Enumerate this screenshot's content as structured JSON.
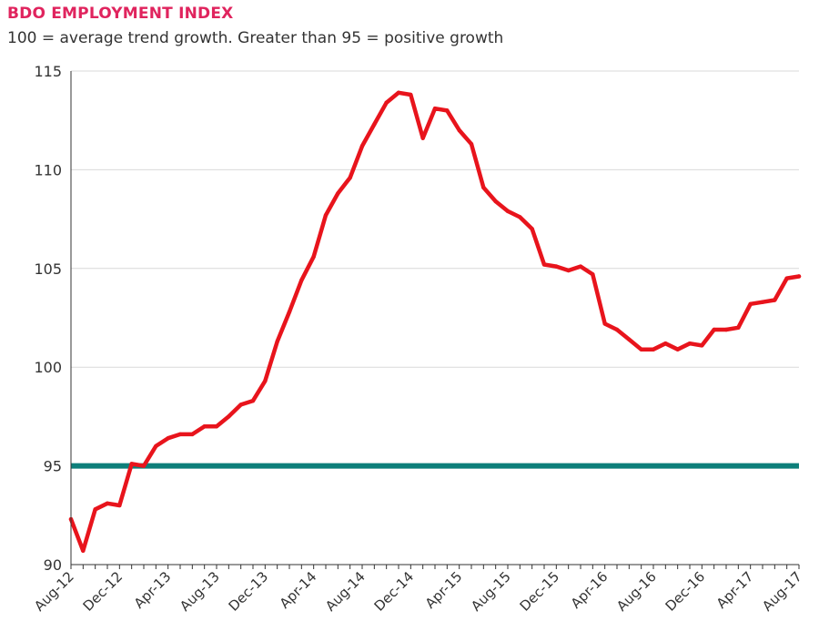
{
  "title": "BDO EMPLOYMENT INDEX",
  "subtitle": "100 = average trend growth. Greater than 95 = positive growth",
  "colors": {
    "title": "#e0245e",
    "series": "#e8141c",
    "threshold": "#0d7f7a",
    "grid": "#d9d9d9",
    "axis": "#333333"
  },
  "chart_data": {
    "type": "line",
    "title": "BDO EMPLOYMENT INDEX",
    "subtitle": "100 = average trend growth. Greater than 95 = positive growth",
    "xlabel": "",
    "ylabel": "",
    "ylim": [
      90,
      115
    ],
    "yticks": [
      90,
      95,
      100,
      105,
      110,
      115
    ],
    "grid": true,
    "legend": "none",
    "x_tick_labels": [
      "Aug-12",
      "Dec-12",
      "Apr-13",
      "Aug-13",
      "Dec-13",
      "Apr-14",
      "Aug-14",
      "Dec-14",
      "Apr-15",
      "Aug-15",
      "Dec-15",
      "Apr-16",
      "Aug-16",
      "Dec-16",
      "Apr-17",
      "Aug-17"
    ],
    "x": [
      "Aug-12",
      "Sep-12",
      "Oct-12",
      "Nov-12",
      "Dec-12",
      "Jan-13",
      "Feb-13",
      "Mar-13",
      "Apr-13",
      "May-13",
      "Jun-13",
      "Jul-13",
      "Aug-13",
      "Sep-13",
      "Oct-13",
      "Nov-13",
      "Dec-13",
      "Jan-14",
      "Feb-14",
      "Mar-14",
      "Apr-14",
      "May-14",
      "Jun-14",
      "Jul-14",
      "Aug-14",
      "Sep-14",
      "Oct-14",
      "Nov-14",
      "Dec-14",
      "Jan-15",
      "Feb-15",
      "Mar-15",
      "Apr-15",
      "May-15",
      "Jun-15",
      "Jul-15",
      "Aug-15",
      "Sep-15",
      "Oct-15",
      "Nov-15",
      "Dec-15",
      "Jan-16",
      "Feb-16",
      "Mar-16",
      "Apr-16",
      "May-16",
      "Jun-16",
      "Jul-16",
      "Aug-16",
      "Sep-16",
      "Oct-16",
      "Nov-16",
      "Dec-16",
      "Jan-17",
      "Feb-17",
      "Mar-17",
      "Apr-17",
      "May-17",
      "Jun-17",
      "Jul-17",
      "Aug-17"
    ],
    "series": [
      {
        "values": [
          92.3,
          90.7,
          92.8,
          93.1,
          93.0,
          95.1,
          95.0,
          96.0,
          96.4,
          96.6,
          96.6,
          97.0,
          97.0,
          97.5,
          98.1,
          98.3,
          99.3,
          101.3,
          102.8,
          104.4,
          105.6,
          107.7,
          108.8,
          109.6,
          111.2,
          112.3,
          113.4,
          113.9,
          113.8,
          111.6,
          113.1,
          113.0,
          112.0,
          111.3,
          109.1,
          108.4,
          107.9,
          107.6,
          107.0,
          105.2,
          105.1,
          104.9,
          105.1,
          104.7,
          102.2,
          101.9,
          101.4,
          100.9,
          100.9,
          101.2,
          100.9,
          101.2,
          101.1,
          101.9,
          101.9,
          102.0,
          103.2,
          103.3,
          103.4,
          104.5,
          104.6
        ]
      }
    ],
    "reference_line": {
      "y": 95
    }
  }
}
